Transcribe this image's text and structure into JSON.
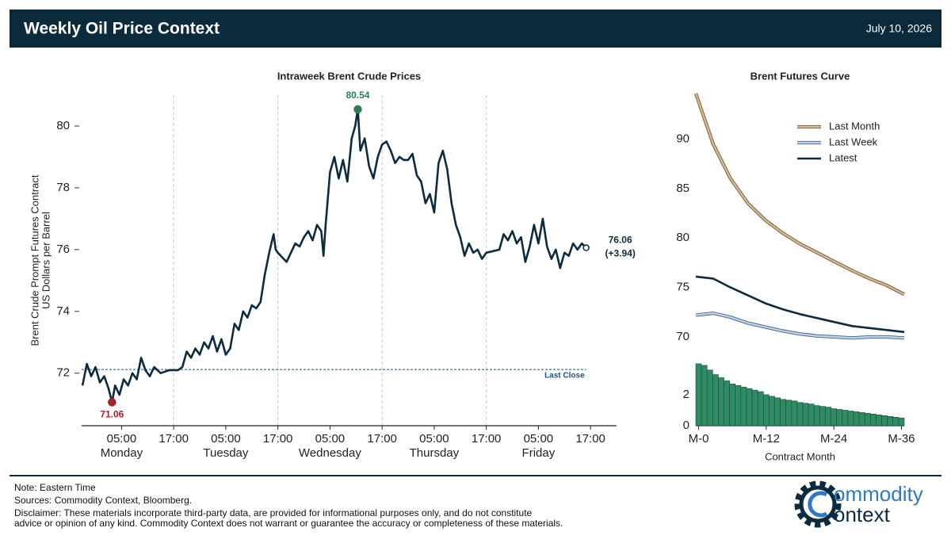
{
  "header": {
    "title": "Weekly Oil Price Context",
    "date": "July 10, 2026"
  },
  "chart_data": [
    {
      "type": "line",
      "title": "Intraweek Brent Crude Prices",
      "ylabel": [
        "Brent Crude Prompt Futures Contract",
        "US Dollars per Barrel"
      ],
      "xlim": [
        -4.2,
        119
      ],
      "ylim": [
        70.3,
        81
      ],
      "yticks": [
        72,
        74,
        76,
        78,
        80
      ],
      "xticks": [
        {
          "value": 5,
          "label": "05:00"
        },
        {
          "value": 17,
          "label": "17:00"
        },
        {
          "value": 29,
          "label": "05:00"
        },
        {
          "value": 41,
          "label": "17:00"
        },
        {
          "value": 53,
          "label": "05:00"
        },
        {
          "value": 65,
          "label": "17:00"
        },
        {
          "value": 77,
          "label": "05:00"
        },
        {
          "value": 89,
          "label": "17:00"
        },
        {
          "value": 101,
          "label": "05:00"
        },
        {
          "value": 113,
          "label": "17:00"
        }
      ],
      "day_labels": [
        {
          "value": 5,
          "label": "Monday"
        },
        {
          "value": 29,
          "label": "Tuesday"
        },
        {
          "value": 53,
          "label": "Wednesday"
        },
        {
          "value": 77,
          "label": "Thursday"
        },
        {
          "value": 101,
          "label": "Friday"
        }
      ],
      "xgrid_lines": [
        17,
        41,
        65,
        89
      ],
      "x": [
        -4,
        -3,
        -2,
        -1,
        0,
        1,
        2,
        2.8,
        3.5,
        4.5,
        5.5,
        6.5,
        7.5,
        8.5,
        9.5,
        10.5,
        11.5,
        12.5,
        14,
        16,
        17,
        18,
        19,
        20,
        21,
        22,
        23,
        24,
        25,
        26,
        27,
        28,
        29,
        30,
        31,
        32,
        33,
        34,
        35,
        36,
        37,
        38,
        39,
        40,
        40.5,
        41,
        43,
        44,
        45,
        46,
        47,
        48,
        49,
        50,
        51,
        51.5,
        52,
        53,
        54,
        55,
        56,
        57,
        58,
        58.8,
        59.4,
        60,
        61,
        62,
        63,
        64,
        65,
        66,
        67,
        68,
        69,
        70,
        71,
        72,
        73,
        74,
        75,
        76,
        77,
        78,
        79,
        80,
        81,
        82,
        83,
        84,
        85,
        86,
        87,
        88,
        89,
        92,
        93,
        94,
        95,
        96,
        97,
        98,
        99,
        100,
        101,
        102,
        103,
        104,
        105,
        106,
        107,
        108,
        109,
        110,
        111,
        112
      ],
      "series": [
        {
          "color": "#0d2b3e",
          "values": [
            71.6,
            72.3,
            71.9,
            72.2,
            71.7,
            71.9,
            71.5,
            71.06,
            71.6,
            71.3,
            71.8,
            71.6,
            72.0,
            71.8,
            72.5,
            72.1,
            71.9,
            72.2,
            72.0,
            72.1,
            72.1,
            72.1,
            72.2,
            72.7,
            72.5,
            72.8,
            72.6,
            73.0,
            72.8,
            73.2,
            72.7,
            73.1,
            72.6,
            72.8,
            73.6,
            73.4,
            74.0,
            73.8,
            74.2,
            74.1,
            74.3,
            75.2,
            75.9,
            76.5,
            76.0,
            75.9,
            75.6,
            75.9,
            76.2,
            76.1,
            76.4,
            76.6,
            76.3,
            76.8,
            76.6,
            75.8,
            76.8,
            78.5,
            79.0,
            78.3,
            78.9,
            78.2,
            79.6,
            80.0,
            80.54,
            79.2,
            79.6,
            78.7,
            78.3,
            79.0,
            79.4,
            79.5,
            79.2,
            78.8,
            79.0,
            78.9,
            78.9,
            79.1,
            78.4,
            78.2,
            77.5,
            77.8,
            77.2,
            78.8,
            79.2,
            78.6,
            77.5,
            76.8,
            76.4,
            75.8,
            76.2,
            75.9,
            76.0,
            75.7,
            75.9,
            76.0,
            76.5,
            76.3,
            76.6,
            76.2,
            76.4,
            75.6,
            76.1,
            76.8,
            76.2,
            77.0,
            76.1,
            75.7,
            76.0,
            75.4,
            75.9,
            75.8,
            76.2,
            76.0,
            76.2,
            76.06
          ]
        }
      ],
      "annotations": [
        {
          "x": 2.8,
          "value": 71.06,
          "color": "#a3232b"
        },
        {
          "x": 59.4,
          "value": 80.54,
          "color": "#2e7d57"
        },
        {
          "x": 112,
          "value": 76.06,
          "color": "#0d2b3e"
        }
      ],
      "change": {
        "value": 3.94,
        "label": "(+3.94)"
      },
      "reference_line": {
        "value": 72.12,
        "label": "Last Close",
        "color": "#1f4e8c"
      }
    },
    {
      "type": "line",
      "title": "Brent Futures Curve",
      "legend": "upper right",
      "xlim": [
        0,
        36
      ],
      "ylim": [
        68.8,
        94.6
      ],
      "yticks": [
        70,
        75,
        80,
        85,
        90
      ],
      "x": [
        0,
        3,
        6,
        9,
        12,
        15,
        18,
        21,
        24,
        27,
        30,
        33,
        36
      ],
      "series": [
        {
          "name": "Last Month",
          "color": "#d7b98c",
          "edgecolor": "#6b5a45",
          "values": [
            94.6,
            89.5,
            86.0,
            83.5,
            81.8,
            80.5,
            79.4,
            78.5,
            77.6,
            76.7,
            75.9,
            75.2,
            74.3
          ]
        },
        {
          "name": "Last Week",
          "color": "#bcd3f0",
          "edgecolor": "#4a5f7a",
          "values": [
            72.2,
            72.4,
            72.0,
            71.4,
            71.0,
            70.6,
            70.3,
            70.1,
            70.0,
            69.9,
            70.0,
            70.0,
            69.9
          ]
        },
        {
          "name": "Latest",
          "color": "#0d2b3e",
          "values": [
            76.1,
            75.9,
            75.0,
            74.2,
            73.4,
            72.8,
            72.3,
            71.9,
            71.5,
            71.1,
            70.9,
            70.7,
            70.5
          ]
        }
      ]
    },
    {
      "type": "bar",
      "xlabel": "Contract Month",
      "color": "#2e8b63",
      "edgecolor": "#1d4a36",
      "xlim": [
        -0.5,
        36.5
      ],
      "ylim": [
        0,
        4.2
      ],
      "yticks": [
        0,
        2
      ],
      "xticks": [
        {
          "value": 0,
          "label": "M-0"
        },
        {
          "value": 12,
          "label": "M-12"
        },
        {
          "value": 24,
          "label": "M-24"
        },
        {
          "value": 36,
          "label": "M-36"
        }
      ],
      "x": [
        0,
        1,
        2,
        3,
        4,
        5,
        6,
        7,
        8,
        9,
        10,
        11,
        12,
        13,
        14,
        15,
        16,
        17,
        18,
        19,
        20,
        21,
        22,
        23,
        24,
        25,
        26,
        27,
        28,
        29,
        30,
        31,
        32,
        33,
        34,
        35,
        36
      ],
      "values": [
        4.0,
        3.9,
        3.6,
        3.3,
        3.1,
        2.9,
        2.7,
        2.6,
        2.5,
        2.4,
        2.3,
        2.2,
        2.0,
        1.9,
        1.8,
        1.7,
        1.65,
        1.6,
        1.5,
        1.45,
        1.4,
        1.3,
        1.25,
        1.2,
        1.1,
        1.05,
        1.0,
        0.95,
        0.9,
        0.85,
        0.8,
        0.75,
        0.7,
        0.65,
        0.6,
        0.55,
        0.5
      ]
    }
  ],
  "footer": {
    "note": "Note: Eastern Time",
    "sources": "Sources: Commodity Context, Bloomberg.",
    "disclaimer": [
      "Disclaimer: These materials incorporate third-party data, are provided for informational purposes only, and do not constitute",
      "advice or opinion of any kind. Commodity Context does not warrant or guarantee the accuracy or completeness of these materials."
    ]
  },
  "logo": {
    "line1": "ommodity",
    "line2": "ontext"
  }
}
